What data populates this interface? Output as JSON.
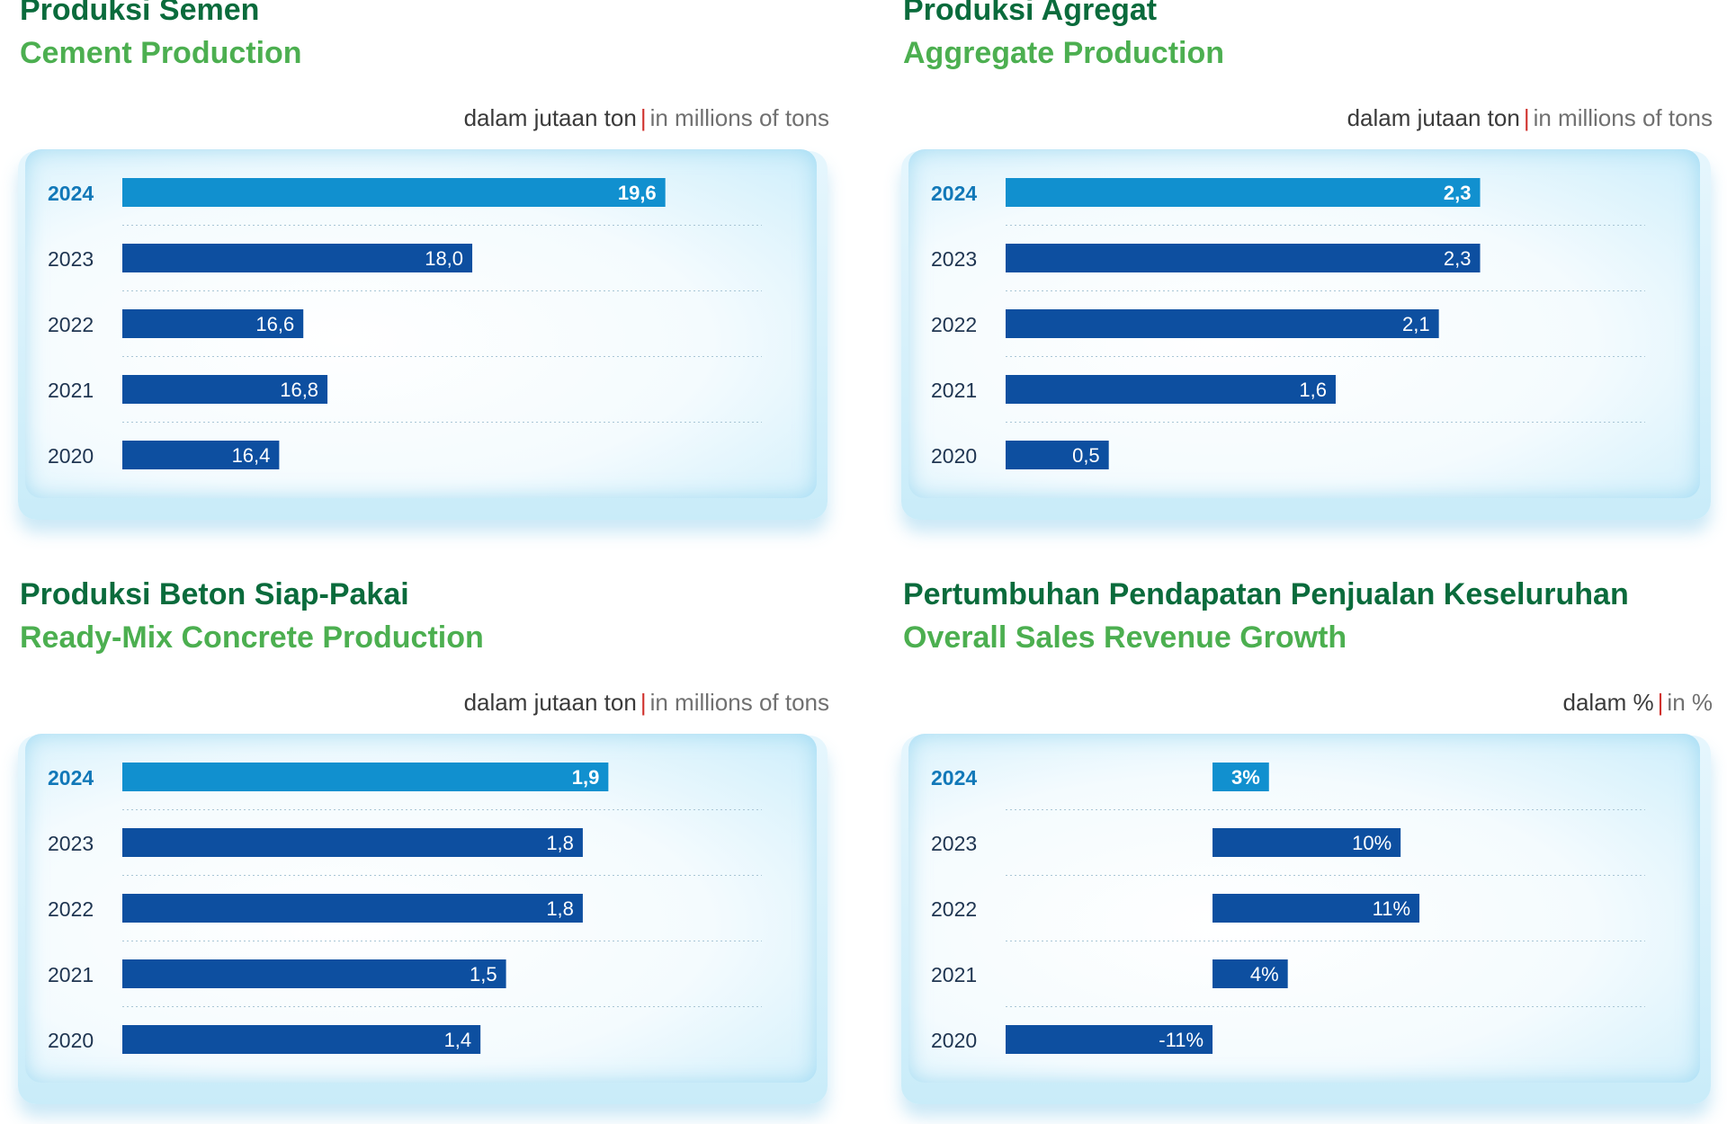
{
  "chart_data": [
    {
      "type": "bar",
      "orientation": "horizontal",
      "title": "Produksi Semen",
      "subtitle": "Cement Production",
      "unit_id": "dalam jutaan ton",
      "unit_en": "in millions of tons",
      "categories": [
        "2024",
        "2023",
        "2022",
        "2021",
        "2020"
      ],
      "values": [
        19.6,
        18.0,
        16.6,
        16.8,
        16.4
      ],
      "value_labels": [
        "19,6",
        "18,0",
        "16,6",
        "16,8",
        "16,4"
      ],
      "xlim": [
        15.1,
        20.4
      ],
      "highlight_category": "2024",
      "grid": true
    },
    {
      "type": "bar",
      "orientation": "horizontal",
      "title": "Produksi Agregat",
      "subtitle": "Aggregate Production",
      "unit_id": "dalam jutaan ton",
      "unit_en": "in millions of tons",
      "categories": [
        "2024",
        "2023",
        "2022",
        "2021",
        "2020"
      ],
      "values": [
        2.3,
        2.3,
        2.1,
        1.6,
        0.5
      ],
      "value_labels": [
        "2,3",
        "2,3",
        "2,1",
        "1,6",
        "0,5"
      ],
      "xlim": [
        0,
        3.1
      ],
      "highlight_category": "2024",
      "grid": true
    },
    {
      "type": "bar",
      "orientation": "horizontal",
      "title": "Produksi Beton Siap-Pakai",
      "subtitle": "Ready-Mix Concrete Production",
      "unit_id": "dalam jutaan ton",
      "unit_en": "in millions of tons",
      "categories": [
        "2024",
        "2023",
        "2022",
        "2021",
        "2020"
      ],
      "values": [
        1.9,
        1.8,
        1.8,
        1.5,
        1.4
      ],
      "value_labels": [
        "1,9",
        "1,8",
        "1,8",
        "1,5",
        "1,4"
      ],
      "xlim": [
        0,
        2.5
      ],
      "highlight_category": "2024",
      "grid": true
    },
    {
      "type": "bar",
      "orientation": "horizontal",
      "title": "Pertumbuhan Pendapatan Penjualan Keseluruhan",
      "subtitle": "Overall Sales Revenue Growth",
      "unit_id": "dalam %",
      "unit_en": "in %",
      "categories": [
        "2024",
        "2023",
        "2022",
        "2021",
        "2020"
      ],
      "values": [
        3,
        10,
        11,
        4,
        -11
      ],
      "value_labels": [
        "3%",
        "10%",
        "11%",
        "4%",
        "-11%"
      ],
      "xlim": [
        -11,
        23
      ],
      "highlight_category": "2024",
      "grid": true
    }
  ],
  "colors": {
    "title": "#0a6b3c",
    "subtitle": "#4caf50",
    "bar": "#0d4fa0",
    "bar_highlight": "#1190cf",
    "separator": "#d0312d",
    "year_highlight": "#1178b8",
    "year": "#1f3551"
  }
}
